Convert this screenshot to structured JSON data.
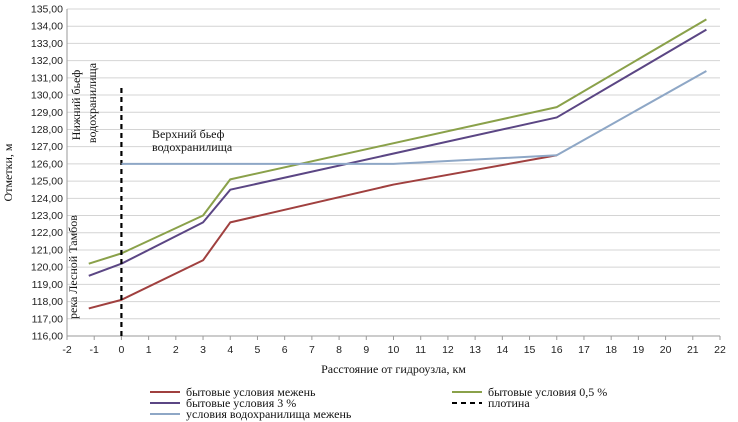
{
  "chart_data": {
    "type": "line",
    "xlabel": "Расстояние от гидроузла, км",
    "ylabel": "Отметки, м",
    "xlim": [
      -2,
      22
    ],
    "ylim": [
      116,
      135
    ],
    "x_ticks": [
      -2,
      -1,
      0,
      1,
      2,
      3,
      4,
      5,
      6,
      7,
      8,
      9,
      10,
      11,
      12,
      13,
      14,
      15,
      16,
      17,
      18,
      19,
      20,
      21,
      22
    ],
    "y_ticks": [
      "116,00",
      "117,00",
      "118,00",
      "119,00",
      "120,00",
      "121,00",
      "122,00",
      "123,00",
      "124,00",
      "125,00",
      "126,00",
      "127,00",
      "128,00",
      "129,00",
      "130,00",
      "131,00",
      "132,00",
      "133,00",
      "134,00",
      "135,00"
    ],
    "grid": "horizontal",
    "legend_position": "bottom",
    "annotations": {
      "lower_pool": [
        "Нижний бьеф",
        "водохранилища"
      ],
      "upper_pool": [
        "Верхний бьеф",
        "водохранилища"
      ],
      "river": "река Лесной Тамбов"
    },
    "series": [
      {
        "name": "бытовые условия межень",
        "color": "#a0403f",
        "x": [
          -1.2,
          0,
          3,
          4,
          10,
          16
        ],
        "y": [
          117.6,
          118.1,
          120.4,
          122.6,
          124.8,
          126.5
        ]
      },
      {
        "name": "бытовые условия 0,5 %",
        "color": "#8aa14a",
        "x": [
          -1.2,
          0,
          3,
          4,
          16,
          21.5
        ],
        "y": [
          120.2,
          120.8,
          123.0,
          125.1,
          129.3,
          134.4
        ]
      },
      {
        "name": "бытовые условия 3 %",
        "color": "#5b4684",
        "x": [
          -1.2,
          0,
          3,
          4,
          16,
          21.5
        ],
        "y": [
          119.5,
          120.2,
          122.6,
          124.5,
          128.7,
          133.8
        ]
      },
      {
        "name": "плотина",
        "color": "#000000",
        "dashed": true,
        "x": [
          0,
          0
        ],
        "y": [
          116.0,
          130.6
        ]
      },
      {
        "name": "условия водохранилища межень",
        "color": "#8ea7c6",
        "x": [
          0,
          10,
          16,
          21.5
        ],
        "y": [
          126.0,
          126.0,
          126.5,
          131.4
        ]
      }
    ]
  }
}
